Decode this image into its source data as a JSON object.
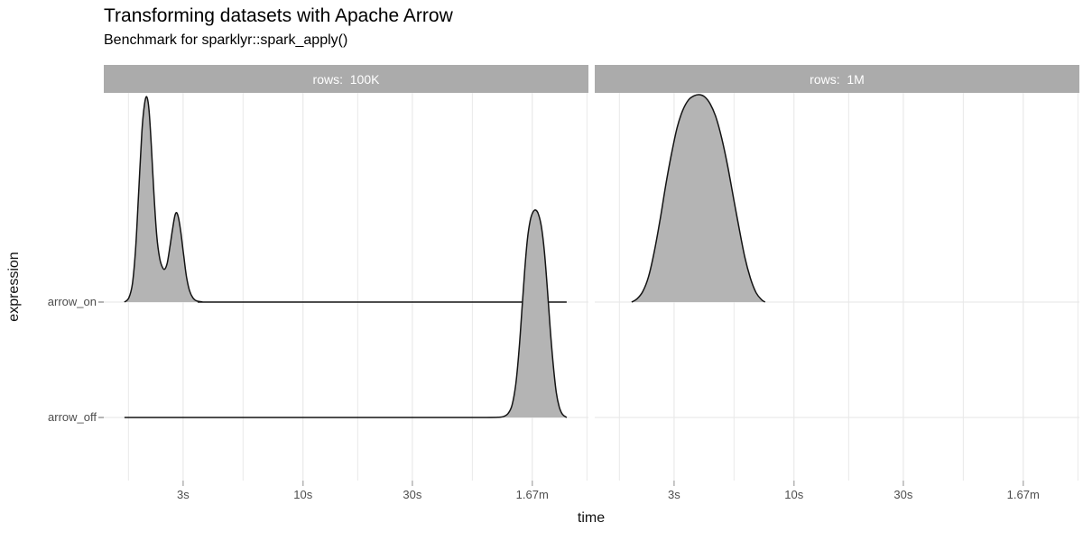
{
  "chart_data": {
    "type": "area",
    "subtype": "faceted-density-ridgeline",
    "title": "Transforming datasets with Apache Arrow",
    "subtitle": "Benchmark for sparklyr::spark_apply()",
    "xlabel": "time",
    "ylabel": "expression",
    "x_scale": "log10-seconds",
    "x_domain_log10": [
      0.131,
      2.245
    ],
    "x_ticks": [
      {
        "label": "3s",
        "log10": 0.477
      },
      {
        "label": "10s",
        "log10": 1.0
      },
      {
        "label": "30s",
        "log10": 1.477
      },
      {
        "label": "1.67m",
        "log10": 2.0
      }
    ],
    "x_minor_log10": [
      0.2385,
      0.7385,
      1.2385,
      1.7385,
      2.2385
    ],
    "y_categories": [
      "arrow_on",
      "arrow_off"
    ],
    "grid": true,
    "legend": "none",
    "style": {
      "ridge_fill": "#b4b4b4",
      "ridge_stroke": "#141414",
      "strip_bg": "#ababab",
      "strip_text": "#ffffff",
      "grid_color": "#e9e9e9",
      "axis_text": "#4d4d4d",
      "tick_color": "#b4b4b4"
    },
    "facets": [
      {
        "label": "rows:  100K",
        "ridges": [
          {
            "category": "arrow_on",
            "modes_seconds": [
              2.1,
              2.8
            ],
            "points": [
              [
                0.221,
                0
              ],
              [
                0.24,
                0.02
              ],
              [
                0.256,
                0.09
              ],
              [
                0.27,
                0.26
              ],
              [
                0.284,
                0.55
              ],
              [
                0.297,
                0.82
              ],
              [
                0.308,
                0.95
              ],
              [
                0.318,
                0.99
              ],
              [
                0.328,
                0.93
              ],
              [
                0.338,
                0.76
              ],
              [
                0.35,
                0.52
              ],
              [
                0.362,
                0.32
              ],
              [
                0.375,
                0.21
              ],
              [
                0.388,
                0.165
              ],
              [
                0.398,
                0.16
              ],
              [
                0.408,
                0.19
              ],
              [
                0.42,
                0.27
              ],
              [
                0.432,
                0.36
              ],
              [
                0.442,
                0.42
              ],
              [
                0.45,
                0.43
              ],
              [
                0.458,
                0.4
              ],
              [
                0.468,
                0.33
              ],
              [
                0.48,
                0.22
              ],
              [
                0.492,
                0.12
              ],
              [
                0.505,
                0.055
              ],
              [
                0.52,
                0.02
              ],
              [
                0.535,
                0.006
              ],
              [
                0.56,
                0.001
              ],
              [
                0.6,
                0
              ],
              [
                1.2,
                0
              ],
              [
                1.8,
                0
              ],
              [
                2.15,
                0
              ]
            ]
          },
          {
            "category": "arrow_off",
            "modes_seconds": [
              100
            ],
            "points": [
              [
                0.221,
                0
              ],
              [
                0.7,
                0
              ],
              [
                1.2,
                0
              ],
              [
                1.7,
                0
              ],
              [
                1.8,
                0
              ],
              [
                1.85,
                0.001
              ],
              [
                1.875,
                0.005
              ],
              [
                1.895,
                0.02
              ],
              [
                1.912,
                0.06
              ],
              [
                1.928,
                0.16
              ],
              [
                1.942,
                0.32
              ],
              [
                1.955,
                0.52
              ],
              [
                1.967,
                0.71
              ],
              [
                1.979,
                0.86
              ],
              [
                1.991,
                0.95
              ],
              [
                2.003,
                0.99
              ],
              [
                2.015,
                1.0
              ],
              [
                2.027,
                0.98
              ],
              [
                2.04,
                0.92
              ],
              [
                2.053,
                0.8
              ],
              [
                2.066,
                0.62
              ],
              [
                2.079,
                0.42
              ],
              [
                2.092,
                0.25
              ],
              [
                2.105,
                0.12
              ],
              [
                2.118,
                0.05
              ],
              [
                2.132,
                0.015
              ],
              [
                2.15,
                0
              ]
            ]
          }
        ]
      },
      {
        "label": "rows:  1M",
        "ridges": [
          {
            "category": "arrow_on",
            "modes_seconds": [
              3.9
            ],
            "points": [
              [
                0.292,
                0
              ],
              [
                0.315,
                0.015
              ],
              [
                0.34,
                0.05
              ],
              [
                0.365,
                0.12
              ],
              [
                0.39,
                0.24
              ],
              [
                0.415,
                0.39
              ],
              [
                0.44,
                0.56
              ],
              [
                0.465,
                0.71
              ],
              [
                0.49,
                0.84
              ],
              [
                0.515,
                0.925
              ],
              [
                0.54,
                0.975
              ],
              [
                0.565,
                0.995
              ],
              [
                0.587,
                1.0
              ],
              [
                0.61,
                0.99
              ],
              [
                0.635,
                0.955
              ],
              [
                0.66,
                0.89
              ],
              [
                0.685,
                0.79
              ],
              [
                0.71,
                0.66
              ],
              [
                0.735,
                0.51
              ],
              [
                0.76,
                0.36
              ],
              [
                0.785,
                0.22
              ],
              [
                0.81,
                0.115
              ],
              [
                0.835,
                0.045
              ],
              [
                0.858,
                0.012
              ],
              [
                0.874,
                0
              ]
            ]
          }
        ]
      }
    ]
  }
}
